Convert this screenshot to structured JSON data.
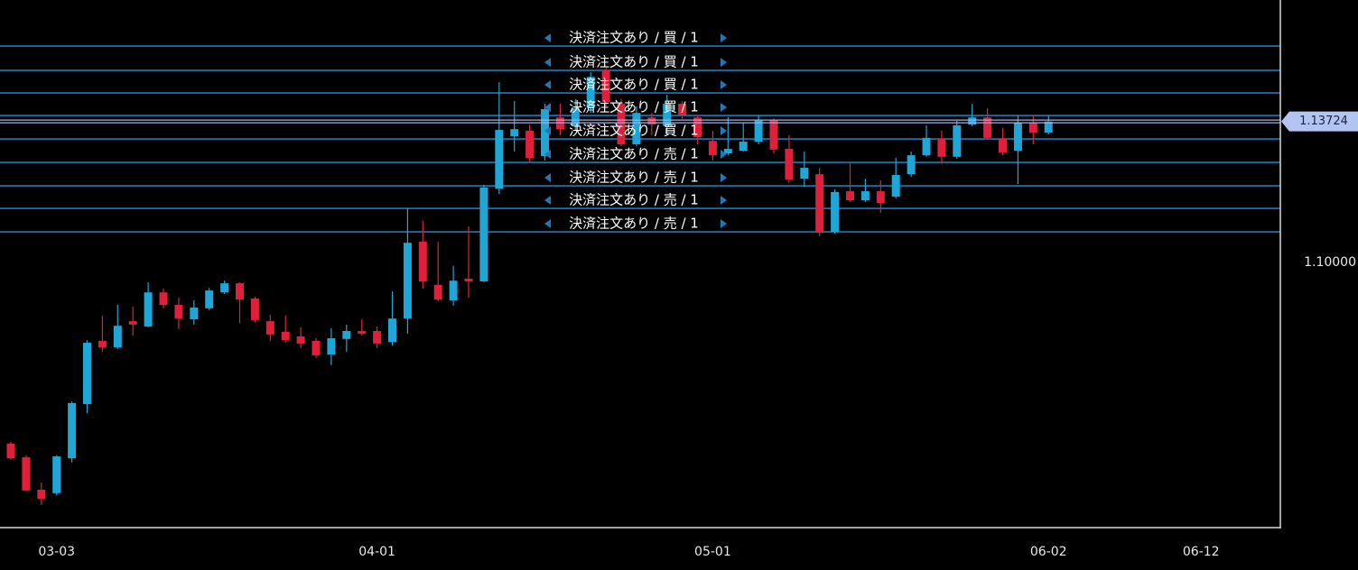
{
  "chart_data": {
    "type": "candlestick",
    "up_color": "#1ea6d6",
    "down_color": "#e0203a",
    "grid": true,
    "ylim": [
      1.03,
      1.1693
    ],
    "yticks": [
      {
        "value": 1.1,
        "label": "1.10000"
      }
    ],
    "yminorticks": [
      1.16,
      1.15,
      1.14,
      1.13,
      1.12,
      1.11,
      1.09,
      1.08,
      1.07,
      1.06,
      1.05,
      1.04,
      1.03
    ],
    "categories": [
      null,
      null,
      null,
      "03-03",
      null,
      null,
      null,
      null,
      null,
      null,
      null,
      null,
      null,
      null,
      null,
      null,
      null,
      null,
      null,
      null,
      null,
      null,
      null,
      null,
      "04-01",
      null,
      null,
      null,
      null,
      null,
      null,
      null,
      null,
      null,
      null,
      null,
      null,
      null,
      null,
      null,
      null,
      null,
      null,
      null,
      null,
      null,
      "05-01",
      null,
      null,
      null,
      null,
      null,
      null,
      null,
      null,
      null,
      null,
      null,
      null,
      null,
      null,
      null,
      null,
      null,
      null,
      null,
      null,
      null,
      "06-02",
      null,
      null,
      null,
      null,
      null,
      null,
      null,
      null,
      null,
      "06-12"
    ],
    "xtick_categories": [
      3,
      8,
      16,
      24,
      31,
      38,
      46,
      53,
      59,
      68,
      78
    ],
    "open": [
      1.0522,
      1.0486,
      1.04,
      1.0391,
      1.0483,
      1.0626,
      1.0793,
      1.0776,
      1.0845,
      1.0831,
      1.0921,
      1.0888,
      1.085,
      1.0879,
      1.0921,
      1.0945,
      1.0905,
      1.0845,
      1.0817,
      1.0805,
      1.0793,
      1.0757,
      1.0798,
      1.0819,
      1.0819,
      1.079,
      1.0852,
      1.1055,
      1.0941,
      1.09,
      1.0957,
      1.095,
      1.1195,
      1.1333,
      1.1348,
      1.1281,
      1.1383,
      1.136,
      1.1407,
      1.1507,
      1.1419,
      1.1312,
      1.1383,
      1.136,
      1.1419,
      1.1383,
      1.1321,
      1.1288,
      1.1295,
      1.1319,
      1.1376,
      1.13,
      1.1221,
      1.1233,
      1.1081,
      1.1188,
      1.1164,
      1.1188,
      1.1174,
      1.1233,
      1.1283,
      1.1326,
      1.1279,
      1.1364,
      1.1383,
      1.1326,
      1.1295,
      1.1369,
      1.1343,
      null,
      null,
      null,
      null,
      null,
      null,
      null,
      null,
      null,
      null
    ],
    "high": [
      1.0526,
      1.0491,
      1.0419,
      1.0491,
      1.0633,
      1.0795,
      1.086,
      1.0888,
      1.0883,
      1.0948,
      1.0931,
      1.0907,
      1.09,
      1.0933,
      1.0952,
      1.0948,
      1.091,
      1.0862,
      1.086,
      1.0829,
      1.08,
      1.0826,
      1.0836,
      1.085,
      1.0831,
      1.0924,
      1.1143,
      1.111,
      1.1055,
      1.0991,
      1.1095,
      1.1205,
      1.1476,
      1.1426,
      1.1364,
      1.1419,
      1.1419,
      1.1431,
      1.1502,
      1.1514,
      1.1431,
      1.1412,
      1.1395,
      1.1443,
      1.1426,
      1.1388,
      1.1348,
      1.1383,
      1.1369,
      1.1388,
      1.1381,
      1.1336,
      1.1293,
      1.125,
      1.1193,
      1.1264,
      1.1221,
      1.1217,
      1.1276,
      1.1293,
      1.1362,
      1.1348,
      1.1374,
      1.1419,
      1.1407,
      1.1355,
      1.1388,
      1.1388,
      1.1388,
      null,
      null,
      null,
      null,
      null,
      null,
      null,
      null,
      null,
      null
    ],
    "low": [
      1.0479,
      1.0395,
      1.036,
      1.0386,
      1.0472,
      1.0602,
      1.0764,
      1.0772,
      1.0807,
      1.0829,
      1.0879,
      1.0824,
      1.0836,
      1.0874,
      1.0917,
      1.084,
      1.0843,
      1.0793,
      1.0788,
      1.0774,
      1.0748,
      1.0729,
      1.0764,
      1.0807,
      1.0774,
      1.0781,
      1.0812,
      1.0931,
      1.0898,
      1.0886,
      1.0907,
      1.0948,
      1.1181,
      1.1293,
      1.1264,
      1.1269,
      1.1336,
      1.1348,
      1.1395,
      1.1412,
      1.1307,
      1.1307,
      1.1336,
      1.1336,
      1.1379,
      1.1312,
      1.1269,
      1.1283,
      1.1293,
      1.1312,
      1.1288,
      1.121,
      1.12,
      1.1069,
      1.1076,
      1.116,
      1.116,
      1.1131,
      1.1169,
      1.1226,
      1.1279,
      1.126,
      1.1274,
      1.136,
      1.1324,
      1.1283,
      1.1207,
      1.1312,
      1.1338,
      null,
      null,
      null,
      null,
      null,
      null,
      null,
      null,
      null,
      null
    ],
    "close": [
      1.0483,
      1.0398,
      1.0376,
      1.0488,
      1.0629,
      1.0788,
      1.0776,
      1.0833,
      1.0836,
      1.0921,
      1.0888,
      1.0852,
      1.0881,
      1.0926,
      1.0945,
      1.0902,
      1.0848,
      1.081,
      1.0795,
      1.0786,
      1.0755,
      1.08,
      1.0819,
      1.0812,
      1.0786,
      1.0852,
      1.1052,
      1.095,
      1.0902,
      1.0952,
      1.095,
      1.1198,
      1.135,
      1.1352,
      1.1276,
      1.1405,
      1.1352,
      1.1407,
      1.149,
      1.1424,
      1.1312,
      1.1395,
      1.1364,
      1.1419,
      1.1388,
      1.1331,
      1.1283,
      1.13,
      1.1319,
      1.1376,
      1.1298,
      1.1219,
      1.125,
      1.1079,
      1.1186,
      1.1164,
      1.1188,
      1.1157,
      1.1231,
      1.1283,
      1.1329,
      1.1279,
      1.1362,
      1.1383,
      1.1329,
      1.129,
      1.1369,
      1.1343,
      1.1372,
      null,
      null,
      null,
      null,
      null,
      null,
      null,
      null,
      null,
      null
    ],
    "current_price": {
      "value": 1.13724,
      "label": "1.13724"
    },
    "order_lines": [
      {
        "label": "決済注文あり / 買 / 1",
        "price": 1.15714
      },
      {
        "label": "決済注文あり / 買 / 1",
        "price": 1.15071
      },
      {
        "label": "決済注文あり / 買 / 1",
        "price": 1.14476
      },
      {
        "label": "決済注文あり / 買 / 1",
        "price": 1.13881
      },
      {
        "label": "決済注文あり / 買 / 1",
        "price": 1.13262
      },
      {
        "label": "決済注文あり / 売 / 1",
        "price": 1.12643
      },
      {
        "label": "決済注文あり / 売 / 1",
        "price": 1.12024
      },
      {
        "label": "決済注文あり / 売 / 1",
        "price": 1.11429
      },
      {
        "label": "決済注文あり / 売 / 1",
        "price": 1.1081
      }
    ]
  }
}
